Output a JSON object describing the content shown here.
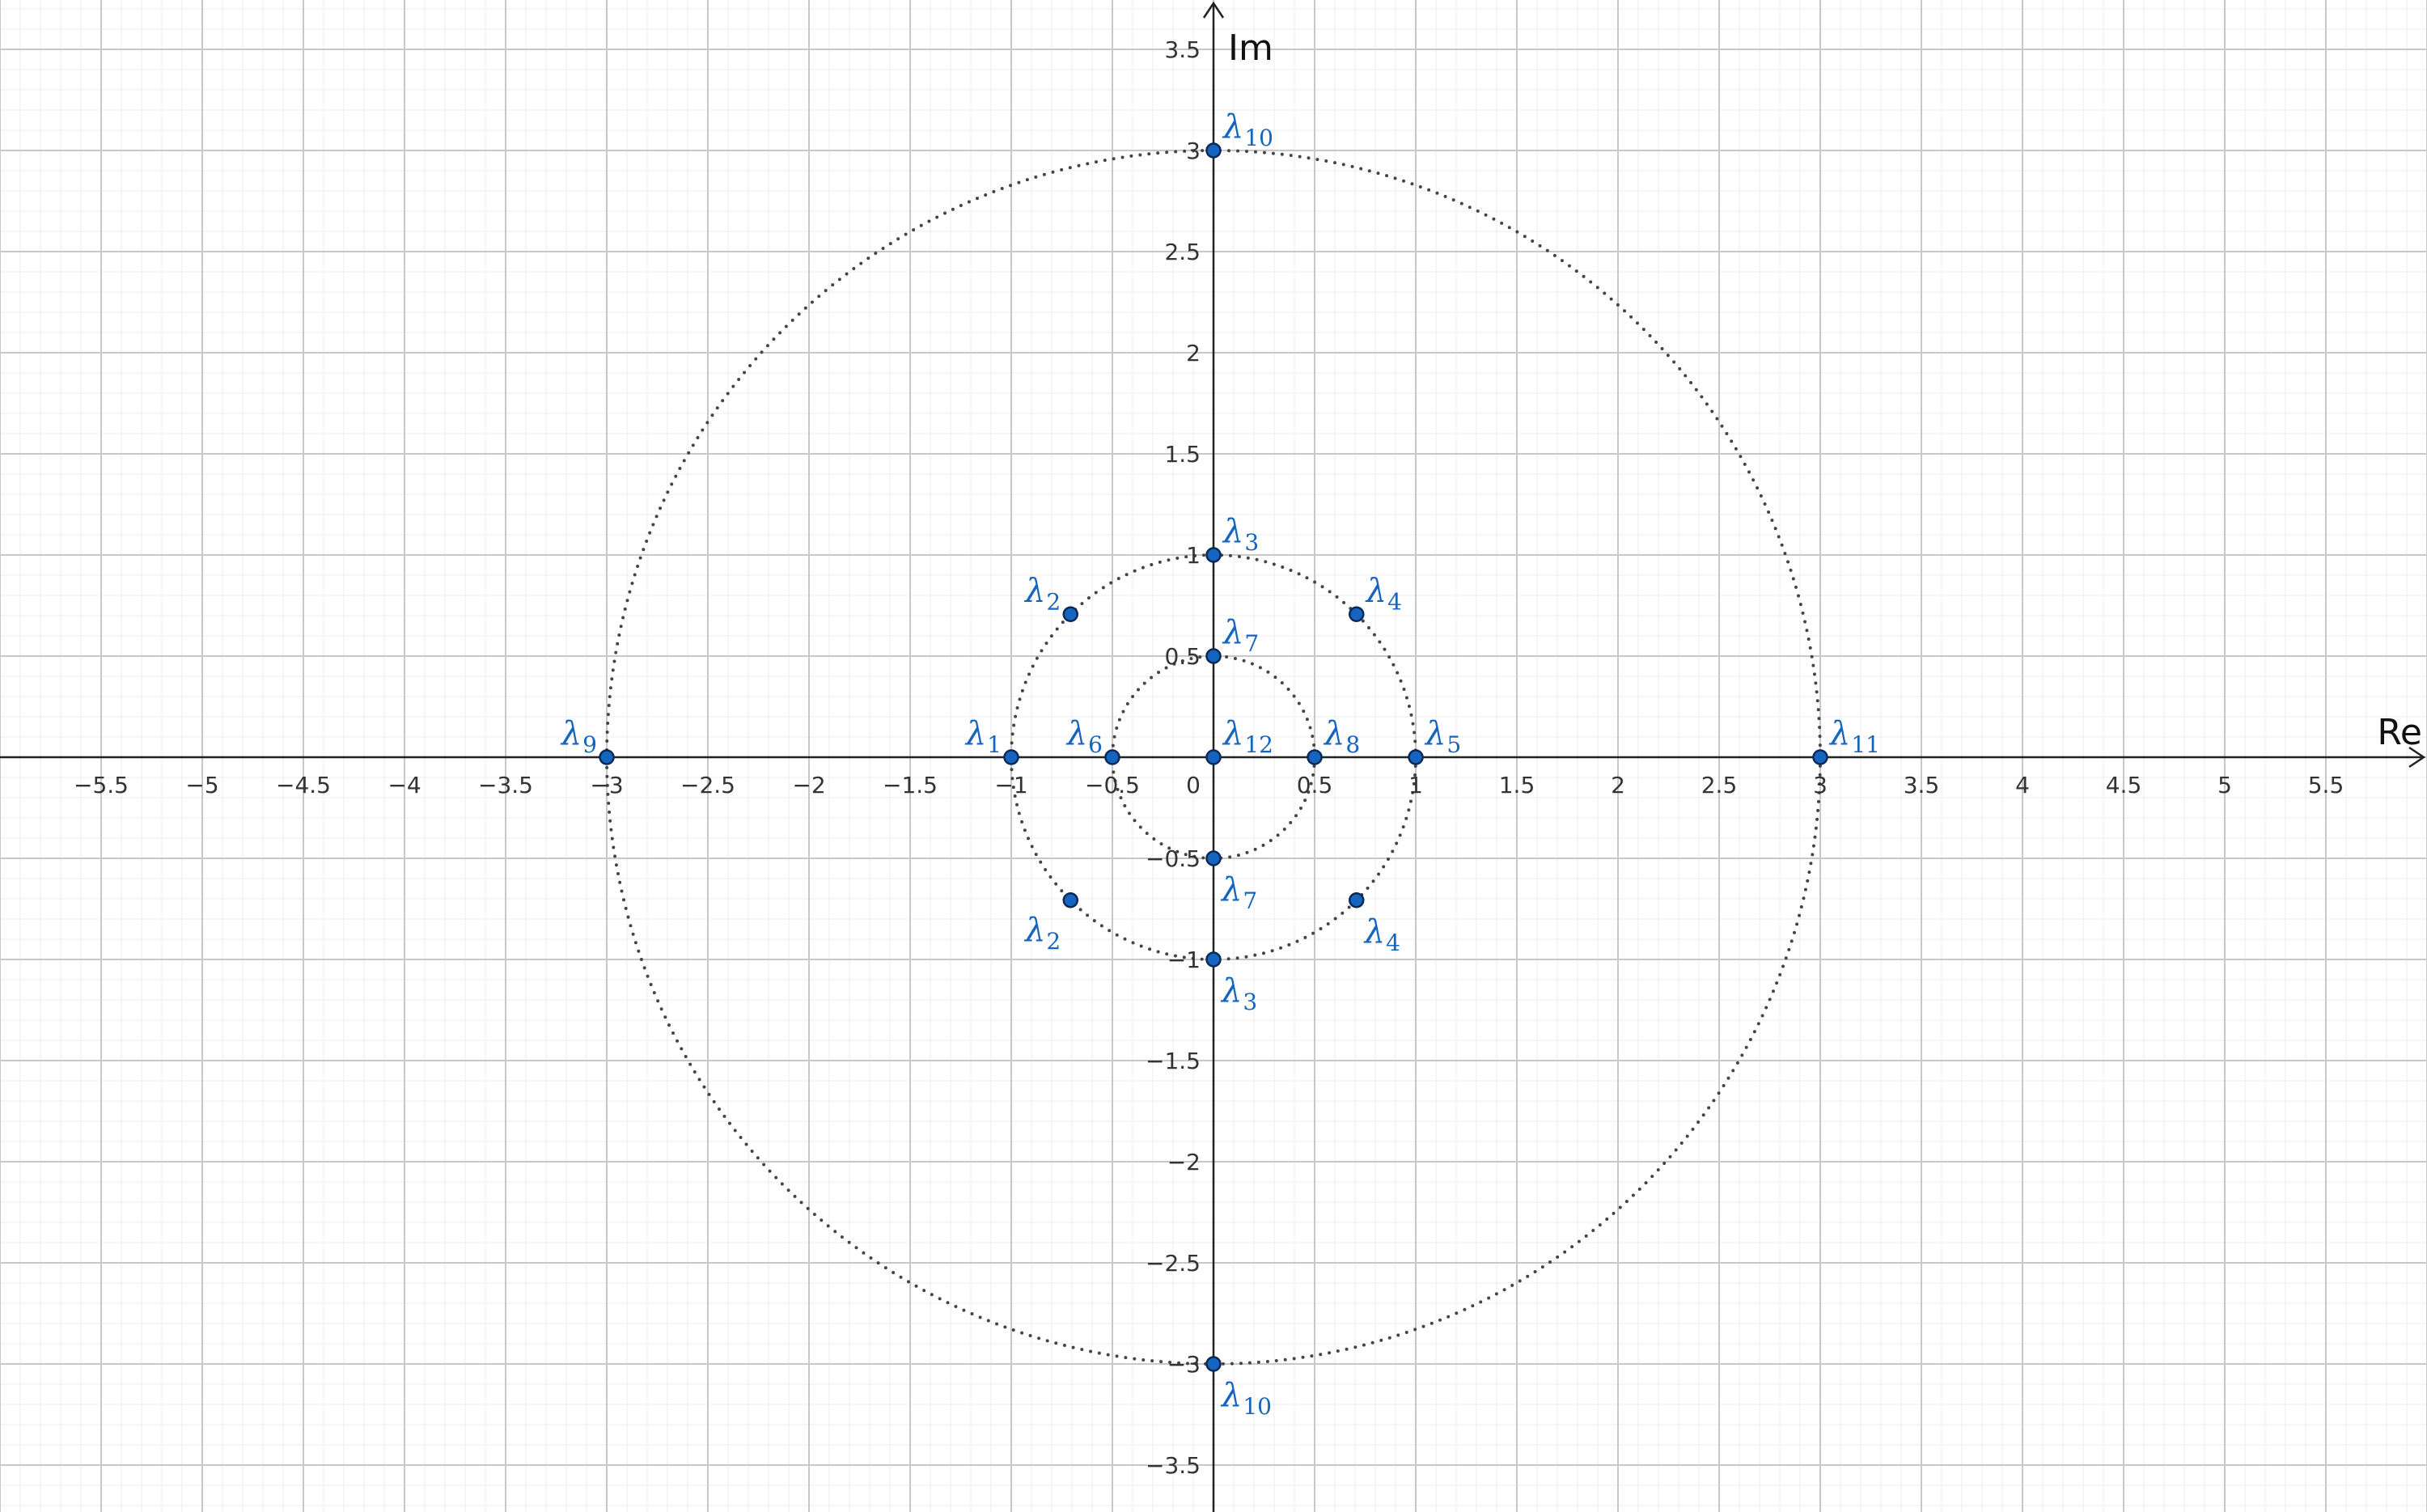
{
  "colors": {
    "background": "#ffffff",
    "grid_major": "#c8c8c8",
    "grid_minor": "#ececec",
    "axis": "#222222",
    "point_fill": "#1565c0",
    "point_stroke": "#0a2a55",
    "label": "#1565c0",
    "circle": "#444444"
  },
  "chart_data": {
    "type": "scatter",
    "title": "",
    "xlabel": "Re",
    "ylabel": "Im",
    "xlim": [
      -6,
      6
    ],
    "ylim": [
      -3.72,
      3.72
    ],
    "grid": true,
    "x_ticks": [
      -5.5,
      -5,
      -4.5,
      -4,
      -3.5,
      -3,
      -2.5,
      -2,
      -1.5,
      -1,
      -0.5,
      0.5,
      1,
      1.5,
      2,
      2.5,
      3,
      3.5,
      4,
      4.5,
      5,
      5.5
    ],
    "y_ticks": [
      -3.5,
      -3,
      -2.5,
      -2,
      -1.5,
      -1,
      -0.5,
      0.5,
      1,
      1.5,
      2,
      2.5,
      3,
      3.5
    ],
    "x_tick_labels": [
      "−5.5",
      "−5",
      "−4.5",
      "−4",
      "−3.5",
      "−3",
      "−2.5",
      "−2",
      "−1.5",
      "−1",
      "−0.5",
      "0.5",
      "1",
      "1.5",
      "2",
      "2.5",
      "3",
      "3.5",
      "4",
      "4.5",
      "5",
      "5.5"
    ],
    "y_tick_labels": [
      "−3.5",
      "−3",
      "−2.5",
      "−2",
      "−1.5",
      "−1",
      "−0.5",
      "0.5",
      "1",
      "1.5",
      "2",
      "2.5",
      "3",
      "3.5"
    ],
    "origin_label": "0",
    "circles": [
      {
        "cx": 0,
        "cy": 0,
        "r": 0.5,
        "style": "dotted"
      },
      {
        "cx": 0,
        "cy": 0,
        "r": 1,
        "style": "dotted"
      },
      {
        "cx": 0,
        "cy": 0,
        "r": 3,
        "style": "dotted"
      }
    ],
    "points": [
      {
        "x": -1,
        "y": 0,
        "label": "λ",
        "sub": "1",
        "anchor": "top-left"
      },
      {
        "x": -0.707,
        "y": 0.707,
        "label": "λ",
        "sub": "2",
        "anchor": "top-left"
      },
      {
        "x": -0.707,
        "y": -0.707,
        "label": "λ",
        "sub": "2",
        "anchor": "bottom-left"
      },
      {
        "x": 0,
        "y": 1,
        "label": "λ",
        "sub": "3",
        "anchor": "top-right"
      },
      {
        "x": 0,
        "y": -1,
        "label": "λ",
        "sub": "3",
        "anchor": "bottom-right"
      },
      {
        "x": 0.707,
        "y": 0.707,
        "label": "λ",
        "sub": "4",
        "anchor": "top-right"
      },
      {
        "x": 0.707,
        "y": -0.707,
        "label": "λ",
        "sub": "4",
        "anchor": "bottom-right"
      },
      {
        "x": 1,
        "y": 0,
        "label": "λ",
        "sub": "5",
        "anchor": "top-right"
      },
      {
        "x": -0.5,
        "y": 0,
        "label": "λ",
        "sub": "6",
        "anchor": "top-left"
      },
      {
        "x": 0,
        "y": 0.5,
        "label": "λ",
        "sub": "7",
        "anchor": "top-right"
      },
      {
        "x": 0,
        "y": -0.5,
        "label": "λ",
        "sub": "7",
        "anchor": "bottom-right"
      },
      {
        "x": 0.5,
        "y": 0,
        "label": "λ",
        "sub": "8",
        "anchor": "top-right"
      },
      {
        "x": -3,
        "y": 0,
        "label": "λ",
        "sub": "9",
        "anchor": "top-left"
      },
      {
        "x": 0,
        "y": 3,
        "label": "λ",
        "sub": "10",
        "anchor": "top-right"
      },
      {
        "x": 0,
        "y": -3,
        "label": "λ",
        "sub": "10",
        "anchor": "bottom-right"
      },
      {
        "x": 3,
        "y": 0,
        "label": "λ",
        "sub": "11",
        "anchor": "top-right"
      },
      {
        "x": 0,
        "y": 0,
        "label": "λ",
        "sub": "12",
        "anchor": "top-right"
      }
    ]
  }
}
